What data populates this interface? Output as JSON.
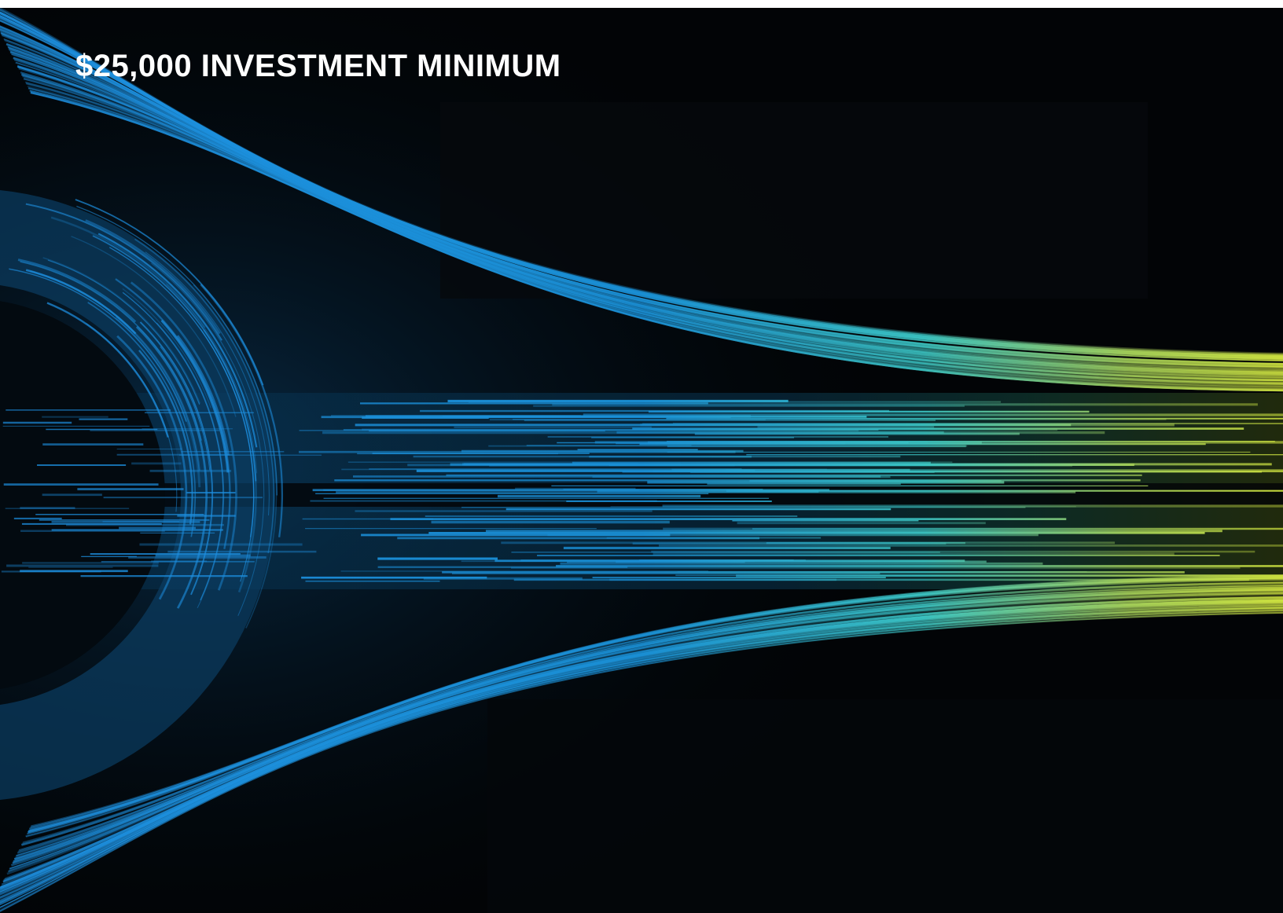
{
  "title": "$25,000 INVESTMENT MINIMUM"
}
